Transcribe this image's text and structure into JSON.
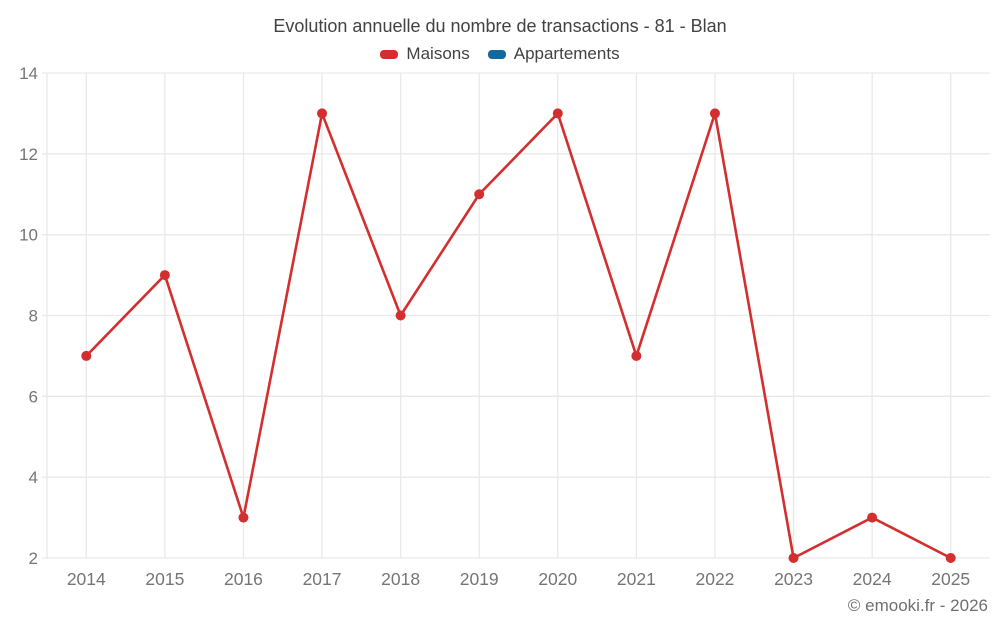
{
  "title": "Evolution annuelle du nombre de transactions - 81 - Blan",
  "legend": {
    "items": [
      {
        "label": "Maisons",
        "color": "#d32f2f"
      },
      {
        "label": "Appartements",
        "color": "#1269a0"
      }
    ]
  },
  "credit": "© emooki.fr - 2026",
  "colors": {
    "background": "#ffffff",
    "grid": "#e9e9e9",
    "axis_label": "#757575",
    "title_text": "#424242",
    "credit_text": "#6f6f6f",
    "maisons": "#d32f2f",
    "appartements": "#1269a0"
  },
  "chart_data": {
    "type": "line",
    "title": "Evolution annuelle du nombre de transactions - 81 - Blan",
    "categories": [
      "2014",
      "2015",
      "2016",
      "2017",
      "2018",
      "2019",
      "2020",
      "2021",
      "2022",
      "2023",
      "2024",
      "2025"
    ],
    "series": [
      {
        "name": "Maisons",
        "color": "#d32f2f",
        "values": [
          7,
          9,
          3,
          13,
          8,
          11,
          13,
          7,
          13,
          2,
          3,
          2
        ]
      },
      {
        "name": "Appartements",
        "color": "#1269a0",
        "values": []
      }
    ],
    "xlabel": "",
    "ylabel": "",
    "ylim": [
      2,
      14
    ],
    "yticks": [
      2,
      4,
      6,
      8,
      10,
      12,
      14
    ],
    "grid": true,
    "legend_position": "top",
    "markers": true
  }
}
